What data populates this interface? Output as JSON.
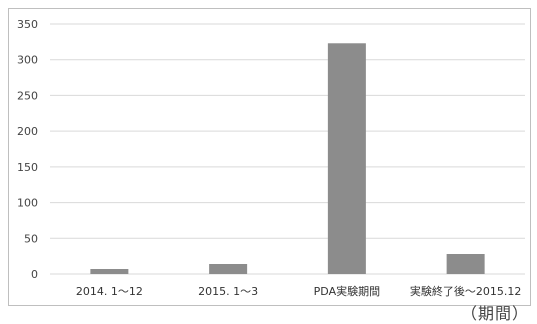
{
  "chart_data": {
    "type": "bar",
    "categories": [
      "2014. 1～12",
      "2015. 1～3",
      "PDA実験期間",
      "実験終了後～2015.12"
    ],
    "values": [
      7,
      14,
      323,
      28
    ],
    "title": "",
    "xlabel": "（期間）",
    "ylabel": "",
    "ylim": [
      0,
      350
    ],
    "yticks": [
      0,
      50,
      100,
      150,
      200,
      250,
      300,
      350
    ],
    "grid": true,
    "legend": "none",
    "bar_color": "#8c8c8c",
    "grid_color": "#d9d9d9"
  }
}
